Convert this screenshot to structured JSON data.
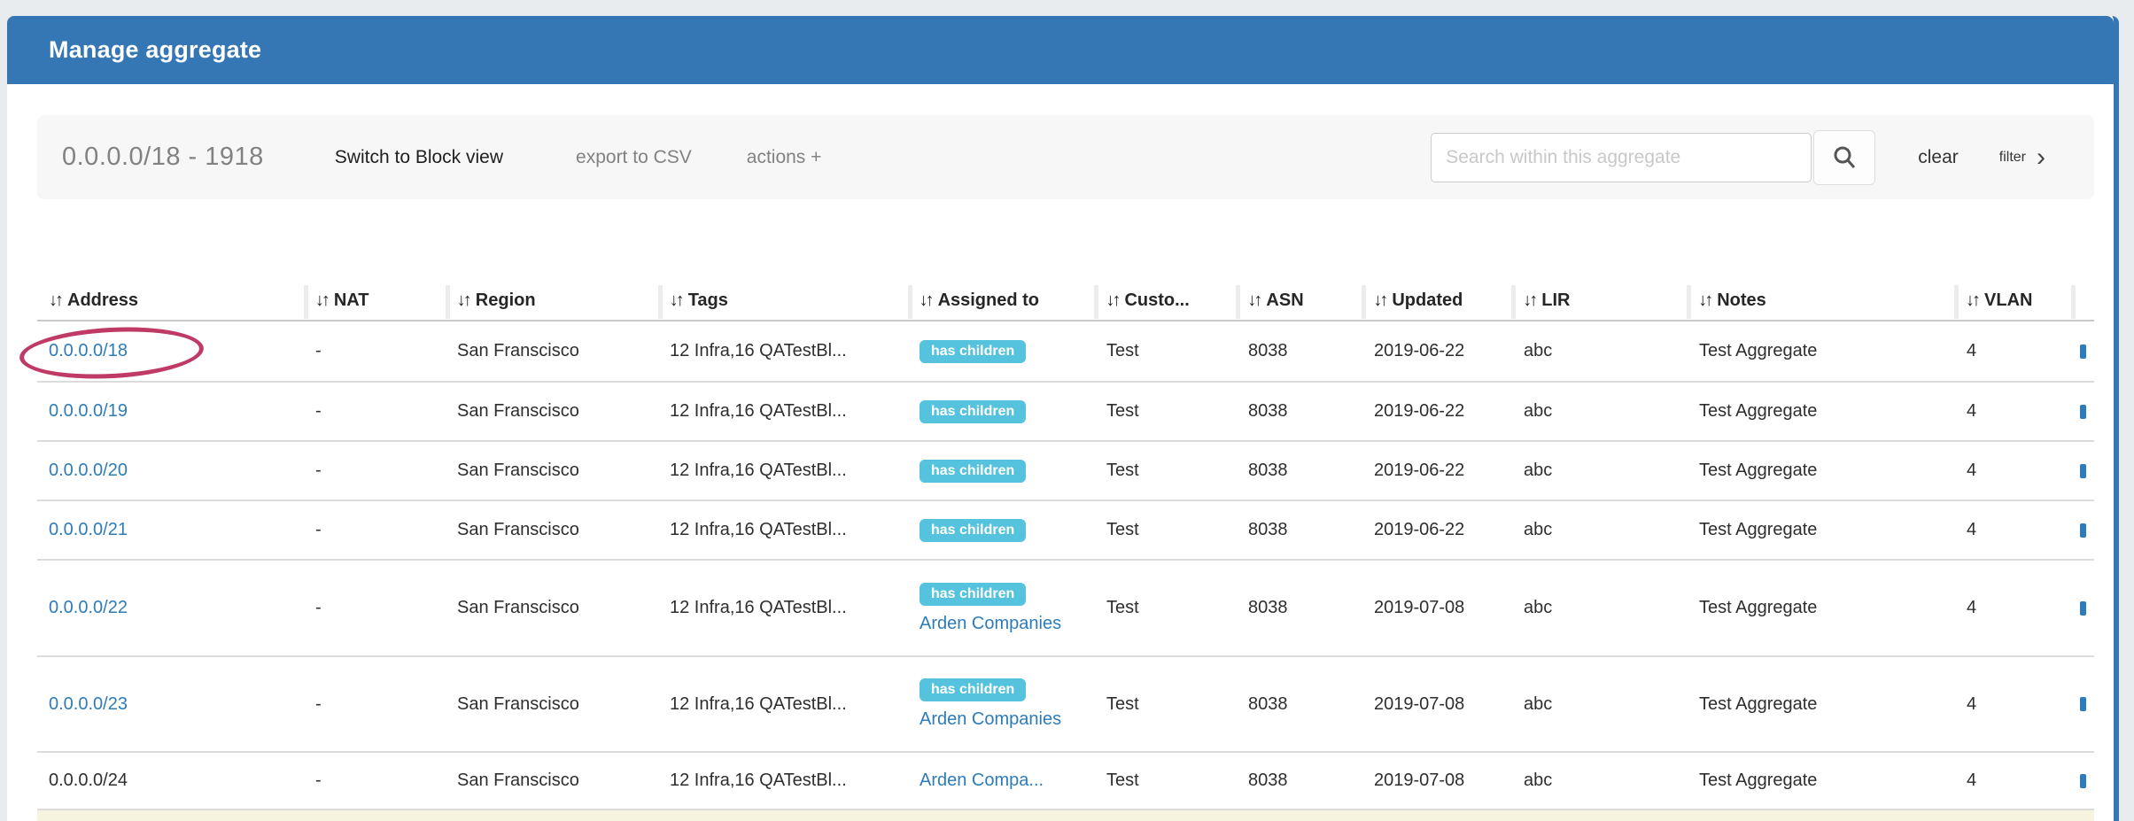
{
  "titlebar": {
    "title": "Manage aggregate"
  },
  "toolbar": {
    "aggregate_label": "0.0.0.0/18 - 1918",
    "switch_view_label": "Switch to Block view",
    "export_csv_label": "export to CSV",
    "actions_label": "actions +",
    "search_placeholder": "Search within this aggregate",
    "search_value": "",
    "clear_label": "clear",
    "filter_label": "filter",
    "filter_chevron": "›"
  },
  "table": {
    "sort_icon": "↓↑",
    "badge_label": "has children",
    "columns": [
      {
        "label": "Address"
      },
      {
        "label": "NAT"
      },
      {
        "label": "Region"
      },
      {
        "label": "Tags"
      },
      {
        "label": "Assigned to"
      },
      {
        "label": "Custo..."
      },
      {
        "label": "ASN"
      },
      {
        "label": "Updated"
      },
      {
        "label": "LIR"
      },
      {
        "label": "Notes"
      },
      {
        "label": "VLAN"
      }
    ],
    "rows": [
      {
        "address": "0.0.0.0/18",
        "address_is_link": true,
        "nat": "-",
        "region": "San Franscisco",
        "tags": "12 Infra,16 QATestBl...",
        "has_children": true,
        "assigned_to": "",
        "customer": "Test",
        "asn": "8038",
        "updated": "2019-06-22",
        "lir": "abc",
        "notes": "Test Aggregate",
        "vlan": "4",
        "circled": true
      },
      {
        "address": "0.0.0.0/19",
        "address_is_link": true,
        "nat": "-",
        "region": "San Franscisco",
        "tags": "12 Infra,16 QATestBl...",
        "has_children": true,
        "assigned_to": "",
        "customer": "Test",
        "asn": "8038",
        "updated": "2019-06-22",
        "lir": "abc",
        "notes": "Test Aggregate",
        "vlan": "4",
        "circled": false
      },
      {
        "address": "0.0.0.0/20",
        "address_is_link": true,
        "nat": "-",
        "region": "San Franscisco",
        "tags": "12 Infra,16 QATestBl...",
        "has_children": true,
        "assigned_to": "",
        "customer": "Test",
        "asn": "8038",
        "updated": "2019-06-22",
        "lir": "abc",
        "notes": "Test Aggregate",
        "vlan": "4",
        "circled": false
      },
      {
        "address": "0.0.0.0/21",
        "address_is_link": true,
        "nat": "-",
        "region": "San Franscisco",
        "tags": "12 Infra,16 QATestBl...",
        "has_children": true,
        "assigned_to": "",
        "customer": "Test",
        "asn": "8038",
        "updated": "2019-06-22",
        "lir": "abc",
        "notes": "Test Aggregate",
        "vlan": "4",
        "circled": false
      },
      {
        "address": "0.0.0.0/22",
        "address_is_link": true,
        "nat": "-",
        "region": "San Franscisco",
        "tags": "12 Infra,16 QATestBl...",
        "has_children": true,
        "assigned_to": "Arden Companies",
        "customer": "Test",
        "asn": "8038",
        "updated": "2019-07-08",
        "lir": "abc",
        "notes": "Test Aggregate",
        "vlan": "4",
        "circled": false
      },
      {
        "address": "0.0.0.0/23",
        "address_is_link": true,
        "nat": "-",
        "region": "San Franscisco",
        "tags": "12 Infra,16 QATestBl...",
        "has_children": true,
        "assigned_to": "Arden Companies",
        "customer": "Test",
        "asn": "8038",
        "updated": "2019-07-08",
        "lir": "abc",
        "notes": "Test Aggregate",
        "vlan": "4",
        "circled": false
      },
      {
        "address": "0.0.0.0/24",
        "address_is_link": false,
        "nat": "-",
        "region": "San Franscisco",
        "tags": "12 Infra,16 QATestBl...",
        "has_children": false,
        "assigned_to": "Arden Compa...",
        "customer": "Test",
        "asn": "8038",
        "updated": "2019-07-08",
        "lir": "abc",
        "notes": "Test Aggregate",
        "vlan": "4",
        "circled": false
      }
    ]
  },
  "colors": {
    "header_blue": "#3577b4",
    "link_blue": "#2d7cb9",
    "badge_blue": "#55c3dd",
    "highlight_yellow": "#f6f3de",
    "annotation_red": "#c03a66"
  }
}
